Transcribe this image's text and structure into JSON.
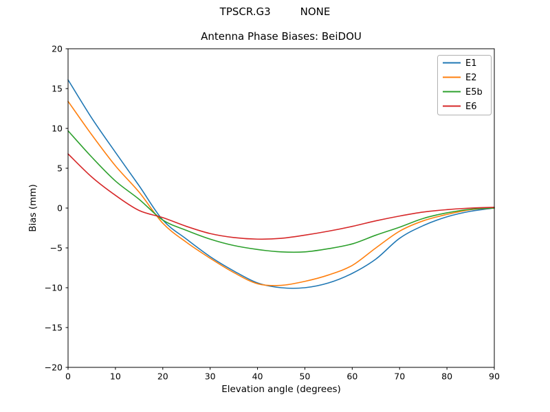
{
  "figure": {
    "suptitle": "TPSCR.G3         NONE"
  },
  "chart_data": {
    "type": "line",
    "title": "Antenna Phase Biases: BeiDOU",
    "suptitle": "TPSCR.G3         NONE",
    "xlabel": "Elevation angle (degrees)",
    "ylabel": "Bias (mm)",
    "xlim": [
      0,
      90
    ],
    "ylim": [
      -20,
      20
    ],
    "xticks": [
      0,
      10,
      20,
      30,
      40,
      50,
      60,
      70,
      80,
      90
    ],
    "yticks": [
      -20,
      -15,
      -10,
      -5,
      0,
      5,
      10,
      15,
      20
    ],
    "grid": false,
    "legend_position": "upper right",
    "x": [
      0,
      5,
      10,
      15,
      20,
      25,
      30,
      35,
      40,
      45,
      50,
      55,
      60,
      65,
      70,
      75,
      80,
      85,
      90
    ],
    "series": [
      {
        "name": "E1",
        "color": "#1f77b4",
        "values": [
          16.1,
          11.3,
          7.0,
          2.8,
          -1.5,
          -3.9,
          -6.1,
          -7.9,
          -9.4,
          -10.0,
          -10.0,
          -9.4,
          -8.2,
          -6.4,
          -3.8,
          -2.2,
          -1.1,
          -0.4,
          0.0
        ]
      },
      {
        "name": "E2",
        "color": "#ff7f0e",
        "values": [
          13.4,
          9.2,
          5.3,
          2.0,
          -1.9,
          -4.3,
          -6.3,
          -8.1,
          -9.5,
          -9.7,
          -9.2,
          -8.4,
          -7.2,
          -5.0,
          -2.9,
          -1.6,
          -0.8,
          -0.2,
          0.0
        ]
      },
      {
        "name": "E5b",
        "color": "#2ca02c",
        "values": [
          9.7,
          6.4,
          3.4,
          1.1,
          -1.5,
          -2.8,
          -3.9,
          -4.7,
          -5.2,
          -5.5,
          -5.5,
          -5.1,
          -4.5,
          -3.4,
          -2.4,
          -1.3,
          -0.6,
          -0.15,
          0.0
        ]
      },
      {
        "name": "E6",
        "color": "#d62728",
        "values": [
          6.8,
          3.9,
          1.6,
          -0.3,
          -1.2,
          -2.3,
          -3.2,
          -3.7,
          -3.9,
          -3.8,
          -3.4,
          -2.9,
          -2.3,
          -1.6,
          -1.0,
          -0.5,
          -0.2,
          0.0,
          0.1
        ]
      }
    ]
  }
}
